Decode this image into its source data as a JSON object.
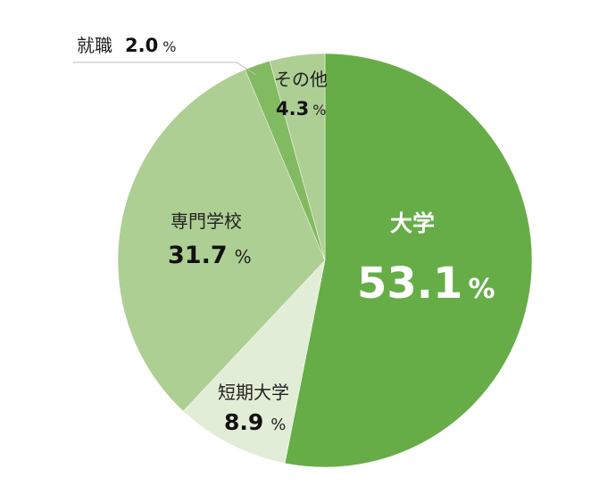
{
  "chart_data": {
    "type": "pie",
    "title": "",
    "start": "12 o'clock",
    "direction": "clockwise",
    "slices": [
      {
        "key": "daigaku",
        "label": "大学",
        "value": 53.1,
        "value_text": "53.1",
        "unit": "%",
        "color": "#66ad47"
      },
      {
        "key": "tanki",
        "label": "短期大学",
        "value": 8.9,
        "value_text": "8.9",
        "unit": "%",
        "color": "#e2edd7"
      },
      {
        "key": "senmon",
        "label": "専門学校",
        "value": 31.7,
        "value_text": "31.7",
        "unit": "%",
        "color": "#aecf94"
      },
      {
        "key": "shushoku",
        "label": "就職",
        "value": 2.0,
        "value_text": "2.0",
        "unit": "%",
        "color": "#82ba61"
      },
      {
        "key": "sonota",
        "label": "その他",
        "value": 4.3,
        "value_text": "4.3",
        "unit": "%",
        "color": "#aecf94"
      }
    ]
  }
}
